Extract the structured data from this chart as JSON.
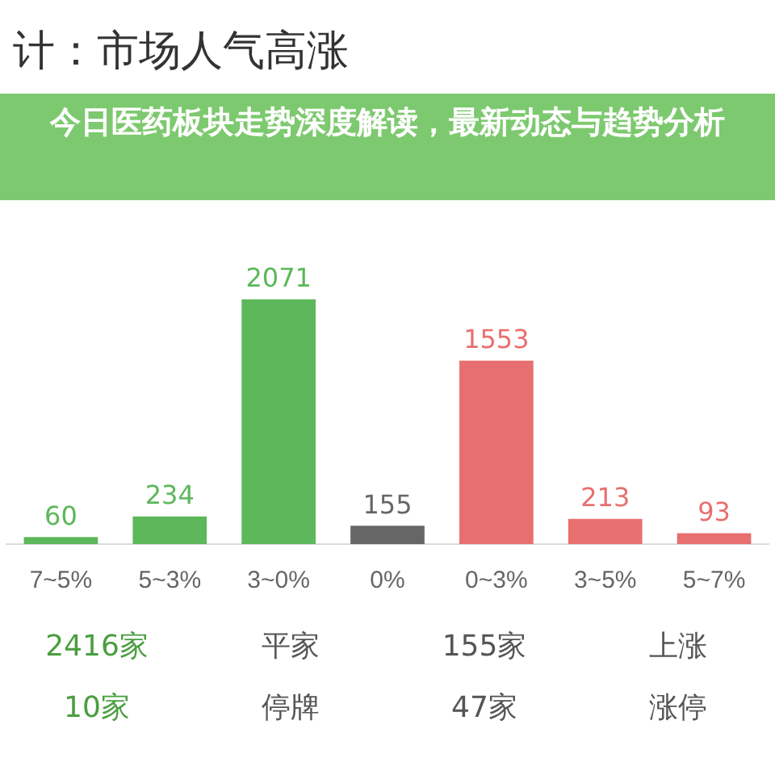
{
  "chart_data": {
    "type": "bar",
    "title": "计：市场人气高涨",
    "subtitle": "今日医药板块走势深度解读，最新动态与趋势分析",
    "categories": [
      "7~5%",
      "5~3%",
      "3~0%",
      "0%",
      "0~3%",
      "3~5%",
      "5~7%"
    ],
    "values": [
      60,
      234,
      2071,
      155,
      1553,
      213,
      93
    ],
    "colors": [
      "#5cb85a",
      "#5cb85a",
      "#5cb85a",
      "#666666",
      "#e86f6f",
      "#e86f6f",
      "#e86f6f"
    ],
    "data_labels": true,
    "grid": false,
    "legend": false,
    "annotations": [
      "2416家",
      "平家",
      "155家",
      "上涨",
      "10家",
      "停牌",
      "47家",
      "涨停"
    ]
  }
}
